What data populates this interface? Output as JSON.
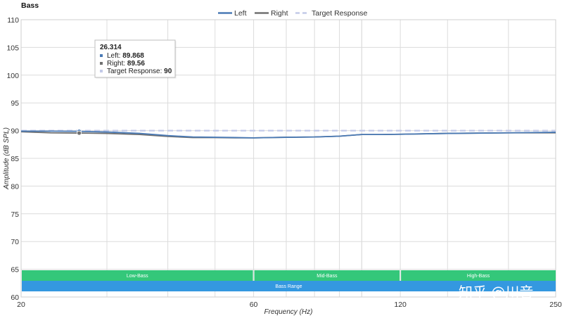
{
  "chart_data": {
    "type": "line",
    "title": "Bass",
    "xlabel": "Frequency (Hz)",
    "ylabel": "Amplitude (dB SPL)",
    "xscale": "log",
    "xlim": [
      20,
      250
    ],
    "ylim": [
      60,
      110
    ],
    "x_ticks": [
      20,
      60,
      120,
      250
    ],
    "y_ticks": [
      60,
      65,
      70,
      75,
      80,
      85,
      90,
      95,
      100,
      105,
      110
    ],
    "grid": true,
    "legend": {
      "placement": "top-center"
    },
    "series": [
      {
        "name": "Left",
        "color": "#4a7ab5",
        "x": [
          20,
          23,
          26.314,
          30,
          35,
          40,
          45,
          50,
          55,
          60,
          70,
          80,
          90,
          100,
          110,
          120,
          150,
          200,
          250
        ],
        "y": [
          89.9,
          89.9,
          89.868,
          89.75,
          89.5,
          89.1,
          88.85,
          88.8,
          88.75,
          88.7,
          88.8,
          88.85,
          89.0,
          89.3,
          89.3,
          89.35,
          89.5,
          89.6,
          89.7
        ]
      },
      {
        "name": "Right",
        "color": "#707070",
        "x": [
          20,
          23,
          26.314,
          30,
          35,
          40,
          45,
          50,
          55,
          60,
          70,
          80,
          90,
          100,
          110,
          120,
          150,
          200,
          250
        ],
        "y": [
          89.8,
          89.6,
          89.56,
          89.5,
          89.3,
          88.95,
          88.75,
          88.75,
          88.7,
          88.7,
          88.8,
          88.85,
          89.0,
          89.3,
          89.3,
          89.35,
          89.5,
          89.6,
          89.6
        ]
      },
      {
        "name": "Target Response",
        "color": "#c3cae8",
        "dashed": true,
        "x": [
          20,
          250
        ],
        "y": [
          90,
          90
        ]
      }
    ],
    "bands": [
      {
        "label": "Low-Bass",
        "from": 20,
        "to": 60,
        "color": "#34c77a"
      },
      {
        "label": "Mid-Bass",
        "from": 60,
        "to": 120,
        "color": "#34c77a"
      },
      {
        "label": "High-Bass",
        "from": 120,
        "to": 250,
        "color": "#34c77a"
      },
      {
        "label": "Bass Range",
        "from": 20,
        "to": 250,
        "color": "#3498e0"
      }
    ],
    "tooltip": {
      "x": "26.314",
      "rows": [
        {
          "label": "Left: ",
          "value": "89.868",
          "color": "#4a7ab5"
        },
        {
          "label": "Right: ",
          "value": "89.56",
          "color": "#707070"
        },
        {
          "label": "Target Response: ",
          "value": "90",
          "color": "#c3cae8"
        }
      ]
    }
  },
  "watermark": "知乎 @川音"
}
